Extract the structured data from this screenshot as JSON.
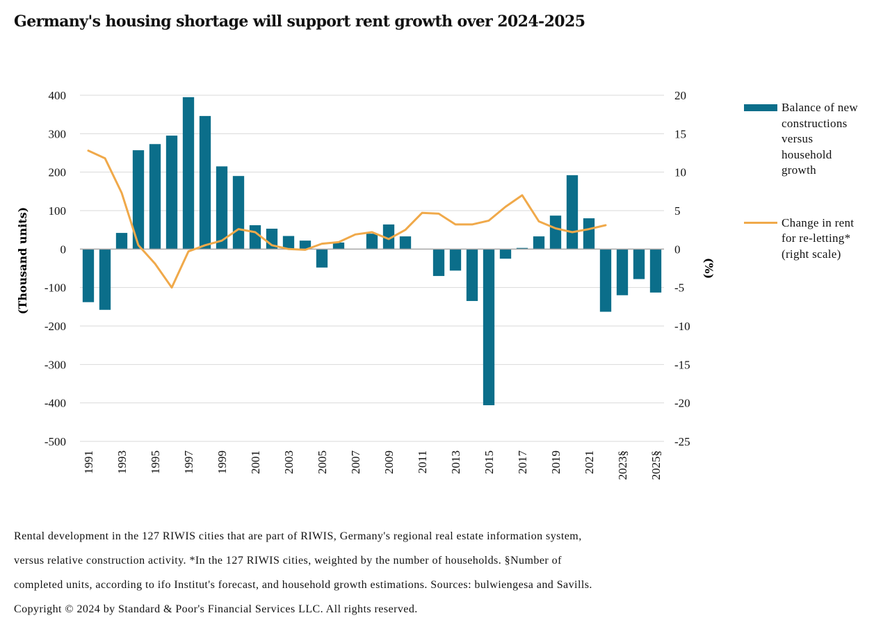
{
  "title": "Germany's housing shortage will support rent growth over 2024-2025",
  "chart_data": {
    "type": "bar",
    "categories": [
      "1991",
      "1992",
      "1993",
      "1994",
      "1995",
      "1996",
      "1997",
      "1998",
      "1999",
      "2000",
      "2001",
      "2002",
      "2003",
      "2004",
      "2005",
      "2006",
      "2007",
      "2008",
      "2009",
      "2010",
      "2011",
      "2012",
      "2013",
      "2014",
      "2015",
      "2016",
      "2017",
      "2018",
      "2019",
      "2020",
      "2021",
      "2022",
      "2023§",
      "2024",
      "2025§"
    ],
    "x_tick_labels": [
      "1991",
      "1993",
      "1995",
      "1997",
      "1999",
      "2001",
      "2003",
      "2005",
      "2007",
      "2009",
      "2011",
      "2013",
      "2015",
      "2017",
      "2019",
      "2021",
      "2023§",
      "2025§"
    ],
    "series": [
      {
        "name": "Balance of new constructions versus household growth",
        "type": "bar",
        "axis": "left",
        "values": [
          -138,
          -158,
          42,
          257,
          273,
          295,
          395,
          346,
          215,
          190,
          62,
          53,
          34,
          22,
          -48,
          17,
          null,
          40,
          64,
          33,
          null,
          -70,
          -56,
          -135,
          -406,
          -25,
          3,
          33,
          87,
          192,
          80,
          -163,
          -120,
          -78,
          -113
        ]
      },
      {
        "name": "Change in rent for re-letting* (right scale)",
        "type": "line",
        "axis": "right",
        "values": [
          12.8,
          11.8,
          7.3,
          0.5,
          -1.9,
          -5.0,
          -0.3,
          0.5,
          1.1,
          2.6,
          2.2,
          0.5,
          0.0,
          -0.1,
          0.7,
          0.9,
          1.9,
          2.2,
          1.3,
          2.5,
          4.7,
          4.6,
          3.2,
          3.2,
          3.7,
          5.5,
          7.0,
          3.6,
          2.7,
          2.2,
          2.6,
          3.1,
          null,
          null,
          null
        ]
      }
    ],
    "ylim_left": [
      -500,
      400
    ],
    "yticks_left": [
      400,
      300,
      200,
      100,
      0,
      -100,
      -200,
      -300,
      -400,
      -500
    ],
    "ylabel_left": "(Thousand units)",
    "ylim_right": [
      -25,
      20
    ],
    "yticks_right": [
      20,
      15,
      10,
      5,
      0,
      -5,
      -10,
      -15,
      -20,
      -25
    ],
    "ylabel_right": "(%)",
    "grid": true,
    "legend_position": "right"
  },
  "legend": [
    {
      "label": "Balance of new constructions versus household growth",
      "lines": [
        "Balance of new",
        "constructions",
        "versus",
        "household",
        "growth"
      ]
    },
    {
      "label": "Change in rent for re-letting* (right scale)",
      "lines": [
        "Change in rent",
        "for re-letting*",
        "(right scale)"
      ]
    }
  ],
  "colors": {
    "bars": "#0b6e8a",
    "line": "#f0a94a",
    "grid": "#d9d9d9",
    "axis": "#a6a6a6"
  },
  "notes": [
    "Rental development in the 127 RIWIS cities that are part of RIWIS, Germany's regional real estate information system,",
    "versus relative construction activity. *In the 127 RIWIS cities, weighted by the number of households. §Number of",
    "completed units, according to ifo Institut's forecast, and household growth estimations. Sources: bulwiengesa and Savills.",
    "Copyright © 2024 by Standard & Poor's Financial Services LLC. All rights reserved."
  ]
}
